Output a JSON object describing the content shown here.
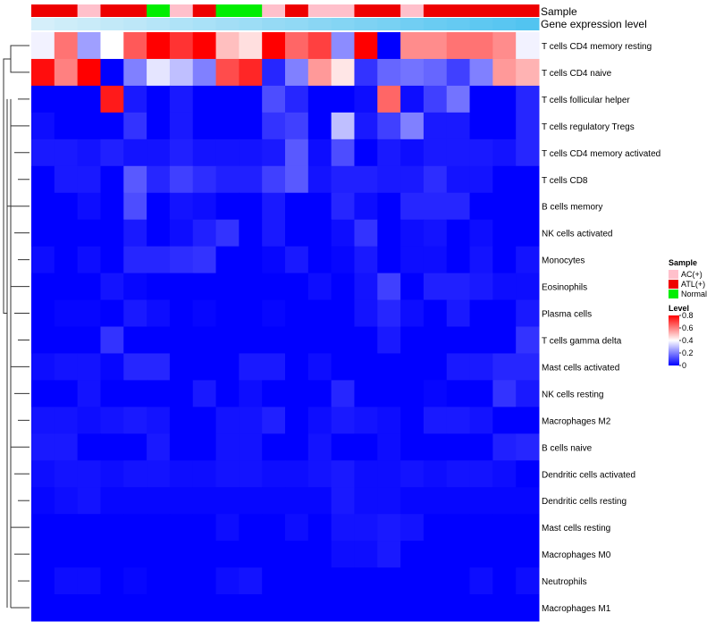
{
  "chart_data": {
    "type": "heatmap",
    "title": "",
    "annotation_tracks": [
      {
        "name": "Sample",
        "values": [
          "ATL(+)",
          "ATL(+)",
          "AC(+)",
          "ATL(+)",
          "ATL(+)",
          "Normal",
          "AC(+)",
          "ATL(+)",
          "Normal",
          "Normal",
          "AC(+)",
          "ATL(+)",
          "AC(+)",
          "AC(+)",
          "ATL(+)",
          "ATL(+)",
          "AC(+)",
          "ATL(+)",
          "ATL(+)",
          "ATL(+)",
          "ATL(+)",
          "ATL(+)"
        ]
      },
      {
        "name": "Gene expression level",
        "values": [
          0.02,
          0.07,
          0.11,
          0.16,
          0.2,
          0.25,
          0.3,
          0.34,
          0.39,
          0.43,
          0.48,
          0.52,
          0.57,
          0.61,
          0.66,
          0.7,
          0.75,
          0.8,
          0.84,
          0.89,
          0.93,
          0.98
        ]
      }
    ],
    "rows": [
      "T cells CD4 memory resting",
      "T cells CD4 naive",
      "T cells follicular helper",
      "T cells regulatory  Tregs",
      "T cells CD4 memory activated",
      "T cells CD8",
      "B cells memory",
      "NK cells activated",
      "Monocytes",
      "Eosinophils",
      "Plasma cells",
      "T cells gamma delta",
      "Mast cells activated",
      "NK cells resting",
      "Macrophages M2",
      "B cells naive",
      "Dendritic cells activated",
      "Dendritic cells resting",
      "Mast cells resting",
      "Macrophages M0",
      "Neutrophils",
      "Macrophages M1"
    ],
    "n_columns": 22,
    "values": [
      [
        0.38,
        0.62,
        0.25,
        0.4,
        0.66,
        0.8,
        0.72,
        0.8,
        0.5,
        0.45,
        0.8,
        0.64,
        0.7,
        0.22,
        0.8,
        0.0,
        0.58,
        0.58,
        0.62,
        0.62,
        0.58,
        0.38
      ],
      [
        0.78,
        0.6,
        0.8,
        0.0,
        0.2,
        0.36,
        0.3,
        0.2,
        0.68,
        0.74,
        0.06,
        0.2,
        0.56,
        0.44,
        0.08,
        0.16,
        0.18,
        0.16,
        0.1,
        0.2,
        0.56,
        0.52
      ],
      [
        0.0,
        0.0,
        0.0,
        0.76,
        0.04,
        0.0,
        0.04,
        0.0,
        0.0,
        0.0,
        0.12,
        0.06,
        0.0,
        0.0,
        0.02,
        0.64,
        0.02,
        0.1,
        0.18,
        0.0,
        0.0,
        0.06
      ],
      [
        0.02,
        0.0,
        0.0,
        0.0,
        0.08,
        0.0,
        0.04,
        0.0,
        0.0,
        0.0,
        0.08,
        0.1,
        0.0,
        0.3,
        0.04,
        0.1,
        0.2,
        0.04,
        0.04,
        0.0,
        0.0,
        0.06
      ],
      [
        0.04,
        0.04,
        0.03,
        0.05,
        0.03,
        0.03,
        0.05,
        0.03,
        0.03,
        0.03,
        0.04,
        0.14,
        0.02,
        0.12,
        0.0,
        0.04,
        0.02,
        0.04,
        0.04,
        0.04,
        0.03,
        0.06
      ],
      [
        0.0,
        0.04,
        0.04,
        0.0,
        0.14,
        0.06,
        0.1,
        0.07,
        0.05,
        0.05,
        0.1,
        0.14,
        0.03,
        0.05,
        0.05,
        0.04,
        0.04,
        0.07,
        0.03,
        0.03,
        0.0,
        0.0
      ],
      [
        0.0,
        0.0,
        0.02,
        0.0,
        0.12,
        0.0,
        0.03,
        0.02,
        0.0,
        0.0,
        0.04,
        0.0,
        0.0,
        0.06,
        0.02,
        0.0,
        0.06,
        0.06,
        0.06,
        0.0,
        0.0,
        0.0
      ],
      [
        0.0,
        0.0,
        0.0,
        0.0,
        0.04,
        0.0,
        0.02,
        0.05,
        0.08,
        0.0,
        0.04,
        0.0,
        0.0,
        0.02,
        0.08,
        0.0,
        0.02,
        0.03,
        0.0,
        0.02,
        0.0,
        0.0
      ],
      [
        0.02,
        0.0,
        0.02,
        0.0,
        0.06,
        0.06,
        0.07,
        0.08,
        0.0,
        0.0,
        0.01,
        0.04,
        0.0,
        0.01,
        0.04,
        0.0,
        0.02,
        0.02,
        0.0,
        0.03,
        0.0,
        0.03
      ],
      [
        0.0,
        0.0,
        0.0,
        0.03,
        0.01,
        0.0,
        0.0,
        0.0,
        0.0,
        0.0,
        0.0,
        0.0,
        0.02,
        0.0,
        0.03,
        0.1,
        0.0,
        0.05,
        0.05,
        0.04,
        0.02,
        0.02
      ],
      [
        0.0,
        0.01,
        0.01,
        0.0,
        0.04,
        0.02,
        0.0,
        0.01,
        0.0,
        0.0,
        0.01,
        0.0,
        0.0,
        0.0,
        0.03,
        0.06,
        0.02,
        0.0,
        0.04,
        0.0,
        0.0,
        0.04
      ],
      [
        0.0,
        0.0,
        0.0,
        0.08,
        0.0,
        0.0,
        0.0,
        0.0,
        0.0,
        0.0,
        0.0,
        0.0,
        0.0,
        0.0,
        0.0,
        0.04,
        0.0,
        0.0,
        0.0,
        0.0,
        0.0,
        0.08
      ],
      [
        0.02,
        0.03,
        0.03,
        0.01,
        0.06,
        0.06,
        0.0,
        0.0,
        0.0,
        0.04,
        0.04,
        0.0,
        0.02,
        0.0,
        0.0,
        0.0,
        0.0,
        0.0,
        0.04,
        0.04,
        0.06,
        0.06
      ],
      [
        0.0,
        0.0,
        0.03,
        0.0,
        0.0,
        0.0,
        0.0,
        0.04,
        0.0,
        0.02,
        0.0,
        0.0,
        0.0,
        0.06,
        0.0,
        0.0,
        0.0,
        0.01,
        0.0,
        0.0,
        0.08,
        0.04
      ],
      [
        0.03,
        0.03,
        0.02,
        0.03,
        0.04,
        0.03,
        0.0,
        0.0,
        0.03,
        0.03,
        0.05,
        0.0,
        0.02,
        0.04,
        0.03,
        0.02,
        0.0,
        0.04,
        0.04,
        0.03,
        0.0,
        0.0
      ],
      [
        0.04,
        0.04,
        0.0,
        0.0,
        0.0,
        0.04,
        0.0,
        0.0,
        0.03,
        0.03,
        0.0,
        0.0,
        0.03,
        0.0,
        0.0,
        0.02,
        0.0,
        0.0,
        0.0,
        0.0,
        0.05,
        0.06
      ],
      [
        0.02,
        0.03,
        0.03,
        0.02,
        0.03,
        0.03,
        0.02,
        0.02,
        0.03,
        0.03,
        0.02,
        0.02,
        0.03,
        0.04,
        0.02,
        0.02,
        0.03,
        0.02,
        0.03,
        0.03,
        0.02,
        0.0
      ],
      [
        0.01,
        0.02,
        0.03,
        0.01,
        0.01,
        0.01,
        0.01,
        0.01,
        0.01,
        0.01,
        0.01,
        0.01,
        0.01,
        0.04,
        0.02,
        0.02,
        0.01,
        0.01,
        0.01,
        0.01,
        0.01,
        0.01
      ],
      [
        0.0,
        0.0,
        0.0,
        0.0,
        0.0,
        0.0,
        0.0,
        0.0,
        0.02,
        0.0,
        0.0,
        0.02,
        0.0,
        0.03,
        0.03,
        0.04,
        0.03,
        0.0,
        0.0,
        0.0,
        0.0,
        0.0
      ],
      [
        0.0,
        0.0,
        0.0,
        0.0,
        0.0,
        0.0,
        0.0,
        0.0,
        0.0,
        0.0,
        0.0,
        0.0,
        0.0,
        0.02,
        0.02,
        0.04,
        0.0,
        0.0,
        0.0,
        0.0,
        0.0,
        0.0
      ],
      [
        0.0,
        0.02,
        0.02,
        0.0,
        0.01,
        0.0,
        0.0,
        0.0,
        0.02,
        0.03,
        0.0,
        0.0,
        0.0,
        0.0,
        0.0,
        0.0,
        0.0,
        0.0,
        0.0,
        0.02,
        0.0,
        0.02
      ],
      [
        0.0,
        0.0,
        0.0,
        0.0,
        0.0,
        0.0,
        0.0,
        0.0,
        0.0,
        0.0,
        0.0,
        0.0,
        0.0,
        0.0,
        0.0,
        0.0,
        0.0,
        0.0,
        0.0,
        0.0,
        0.0,
        0.0
      ]
    ],
    "legend": {
      "sample": {
        "title": "Sample",
        "entries": [
          {
            "label": "AC(+)",
            "color": "#ffc0cb"
          },
          {
            "label": "ATL(+)",
            "color": "#ee0000"
          },
          {
            "label": "Normal",
            "color": "#00ee00"
          }
        ]
      },
      "level": {
        "title": "Level",
        "ticks": [
          "0.8",
          "0.6",
          "0.4",
          "0.2",
          "0"
        ],
        "tick_values": [
          0.8,
          0.6,
          0.4,
          0.2,
          0
        ],
        "range": [
          0,
          0.8
        ],
        "colors": [
          "#0000ff",
          "#ffffff",
          "#ff0000"
        ]
      }
    },
    "annotation_colors": {
      "gene_low": "#d8f0fa",
      "gene_high": "#4fc3f0"
    }
  }
}
